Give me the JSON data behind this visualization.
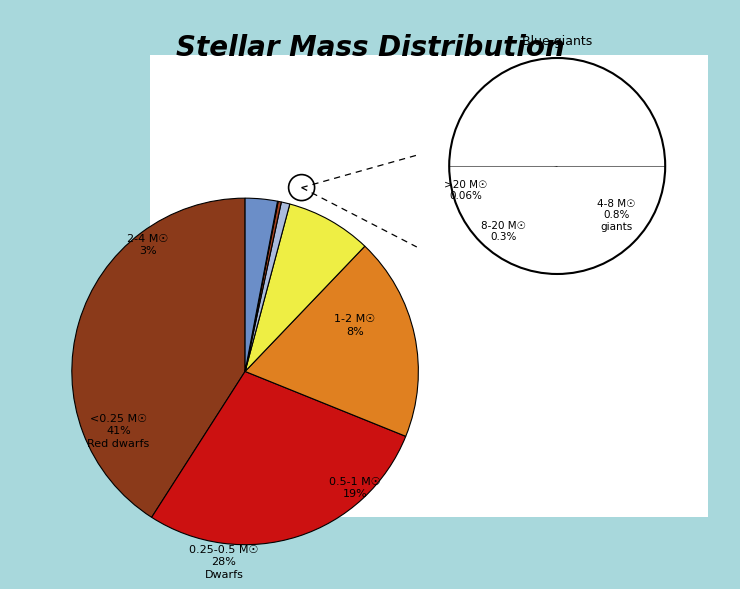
{
  "title": "Stellar Mass Distribution",
  "background_color": "#A8D8DC",
  "chart_bg": "#FFFFFF",
  "slice_order": [
    {
      "label": "<0.25 M☉\n41%\nRed dwarfs",
      "value": 41,
      "color": "#8B3A1A"
    },
    {
      "label": "0.25-0.5 M☉\n28%\nDwarfs",
      "value": 28,
      "color": "#CC1111"
    },
    {
      "label": "0.5-1 M☉\n19%",
      "value": 19,
      "color": "#E08020"
    },
    {
      "label": "1-2 M☉\n8%",
      "value": 8,
      "color": "#EEEE44"
    },
    {
      "label": "4-8 M☉\n0.8%\ngiants",
      "value": 0.8,
      "color": "#AABBDD"
    },
    {
      "label": "8-20 M☉\n0.3%",
      "value": 0.3,
      "color": "#A04020"
    },
    {
      "label": ">20 M☉\n0.06%",
      "value": 0.06,
      "color": "#8B3A1A"
    },
    {
      "label": "2-4 M☉\n3%",
      "value": 3,
      "color": "#6B8EC8"
    }
  ],
  "inset_slices": [
    {
      "label": ">20 M☉\n0.06%",
      "value": 0.06,
      "color": "#8B3A1A"
    },
    {
      "label": "8-20 M☉\n0.3%",
      "value": 0.3,
      "color": "#A04020"
    },
    {
      "label": "4-8 M☉\n0.8%\ngiants",
      "value": 0.8,
      "color": "#AABBDD"
    }
  ],
  "inset_title": "Blue giants"
}
